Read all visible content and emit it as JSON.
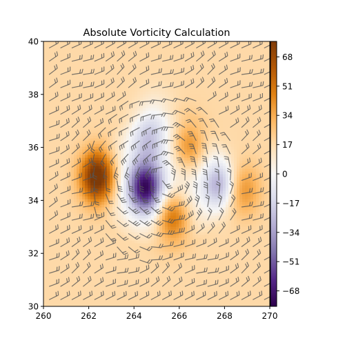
{
  "chart_data": {
    "type": "heatmap",
    "title": "Absolute Vorticity Calculation",
    "xlabel": "",
    "ylabel": "",
    "xlim": [
      260,
      270
    ],
    "ylim": [
      30,
      40
    ],
    "x_ticks": [
      "260",
      "262",
      "264",
      "266",
      "268",
      "270"
    ],
    "y_ticks": [
      "30",
      "32",
      "34",
      "36",
      "38",
      "40"
    ],
    "colorbar": {
      "range": [
        -77,
        77
      ],
      "colormap": "PuOr_r",
      "ticks": [
        "-68",
        "-51",
        "-34",
        "-17",
        "0",
        "17",
        "34",
        "51",
        "68"
      ]
    },
    "field_features": [
      {
        "x": 262.4,
        "y": 34.9,
        "value": 70,
        "kind": "positive"
      },
      {
        "x": 264.5,
        "y": 34.5,
        "value": -75,
        "kind": "negative"
      },
      {
        "x": 267.8,
        "y": 34.6,
        "value": -40,
        "kind": "negative"
      },
      {
        "x": 265.7,
        "y": 33.4,
        "value": 45,
        "kind": "positive"
      },
      {
        "x": 266.4,
        "y": 36.0,
        "value": 35,
        "kind": "positive"
      },
      {
        "x": 264.6,
        "y": 36.4,
        "value": -25,
        "kind": "negative"
      },
      {
        "x": 265.0,
        "y": 37.3,
        "value": -10,
        "kind": "negative"
      },
      {
        "x": 268.8,
        "y": 34.4,
        "value": 25,
        "kind": "positive"
      }
    ],
    "background_value": 18,
    "overlay": "wind barbs",
    "grid": false
  }
}
